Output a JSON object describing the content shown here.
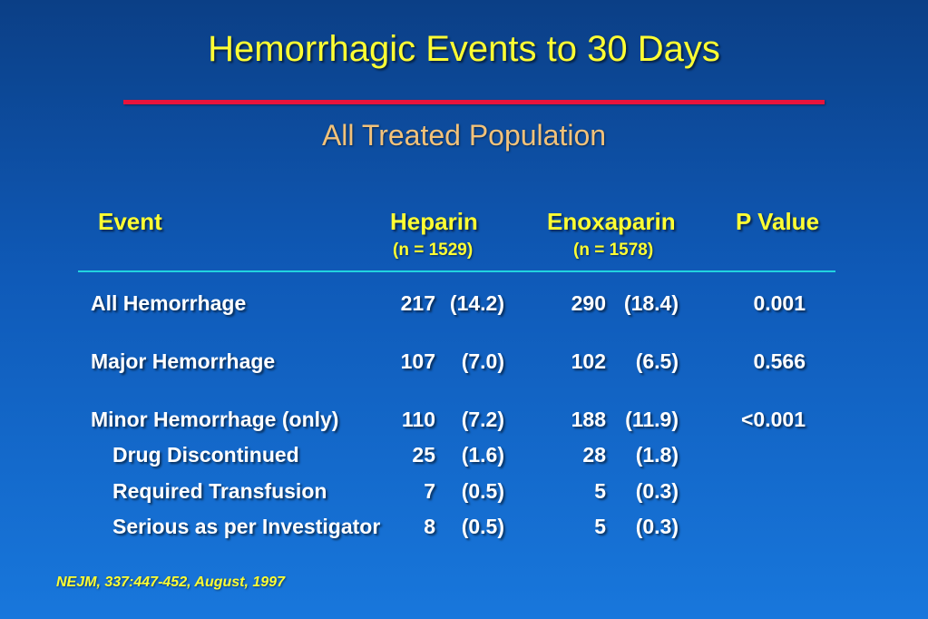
{
  "title": "Hemorrhagic Events to 30 Days",
  "subtitle": "All Treated Population",
  "table": {
    "headers": {
      "event": "Event",
      "heparin": "Heparin",
      "heparin_n": "(n = 1529)",
      "enoxaparin": "Enoxaparin",
      "enoxaparin_n": "(n = 1578)",
      "p_value": "P Value"
    },
    "rows": [
      {
        "event": "All Hemorrhage",
        "hep_n": "217",
        "hep_pct": "(14.2)",
        "eno_n": "290",
        "eno_pct": "(18.4)",
        "p": "0.001"
      },
      {
        "event": "Major Hemorrhage",
        "hep_n": "107",
        "hep_pct": "(7.0)",
        "eno_n": "102",
        "eno_pct": "(6.5)",
        "p": "0.566"
      },
      {
        "event": "Minor Hemorrhage (only)",
        "hep_n": "110",
        "hep_pct": "(7.2)",
        "eno_n": "188",
        "eno_pct": "(11.9)",
        "p": "<0.001"
      },
      {
        "event": "Drug Discontinued",
        "hep_n": "25",
        "hep_pct": "(1.6)",
        "eno_n": "28",
        "eno_pct": "(1.8)",
        "p": ""
      },
      {
        "event": "Required Transfusion",
        "hep_n": "7",
        "hep_pct": "(0.5)",
        "eno_n": "5",
        "eno_pct": "(0.3)",
        "p": ""
      },
      {
        "event": "Serious as per Investigator",
        "hep_n": "8",
        "hep_pct": "(0.5)",
        "eno_n": "5",
        "eno_pct": "(0.3)",
        "p": ""
      }
    ]
  },
  "footer": "NEJM, 337:447-452, August, 1997"
}
